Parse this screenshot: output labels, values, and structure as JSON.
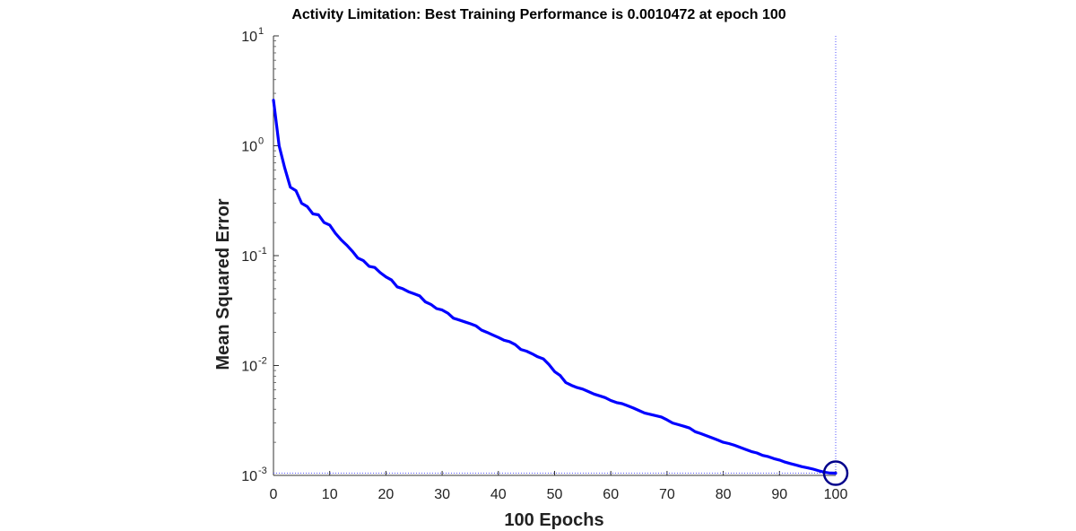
{
  "chart_data": {
    "type": "line",
    "title": "Activity Limitation: Best Training Performance is 0.0010472 at epoch 100",
    "xlabel": "100 Epochs",
    "ylabel": "Mean Squared Error",
    "xlim": [
      0,
      100
    ],
    "ylim": [
      0.001,
      10
    ],
    "yscale": "log",
    "xticks": [
      0,
      10,
      20,
      30,
      40,
      50,
      60,
      70,
      80,
      90,
      100
    ],
    "xtick_labels": [
      "0",
      "10",
      "20",
      "30",
      "40",
      "50",
      "60",
      "70",
      "80",
      "90",
      "100"
    ],
    "yticks": [
      {
        "value": 10,
        "base": "10",
        "exp": "1"
      },
      {
        "value": 1,
        "base": "10",
        "exp": "0"
      },
      {
        "value": 0.1,
        "base": "10",
        "exp": "-1"
      },
      {
        "value": 0.01,
        "base": "10",
        "exp": "-2"
      },
      {
        "value": 0.001,
        "base": "10",
        "exp": "-3"
      }
    ],
    "grid": false,
    "series": [
      {
        "color": "#0000ff",
        "x": [
          0,
          1,
          2,
          3,
          4,
          5,
          6,
          7,
          8,
          9,
          10,
          11,
          12,
          13,
          14,
          15,
          16,
          17,
          18,
          19,
          20,
          21,
          22,
          23,
          24,
          25,
          26,
          27,
          28,
          29,
          30,
          31,
          32,
          33,
          34,
          35,
          36,
          37,
          38,
          39,
          40,
          41,
          42,
          43,
          44,
          45,
          46,
          47,
          48,
          49,
          50,
          51,
          52,
          53,
          54,
          55,
          56,
          57,
          58,
          59,
          60,
          61,
          62,
          63,
          64,
          65,
          66,
          67,
          68,
          69,
          70,
          71,
          72,
          73,
          74,
          75,
          76,
          77,
          78,
          79,
          80,
          81,
          82,
          83,
          84,
          85,
          86,
          87,
          88,
          89,
          90,
          91,
          92,
          93,
          94,
          95,
          96,
          97,
          98,
          99,
          100
        ],
        "y": [
          2.6,
          1.0,
          0.63,
          0.42,
          0.39,
          0.3,
          0.28,
          0.24,
          0.235,
          0.2,
          0.19,
          0.16,
          0.14,
          0.125,
          0.11,
          0.095,
          0.09,
          0.08,
          0.078,
          0.07,
          0.064,
          0.06,
          0.052,
          0.05,
          0.047,
          0.045,
          0.043,
          0.038,
          0.036,
          0.033,
          0.032,
          0.03,
          0.027,
          0.026,
          0.025,
          0.024,
          0.023,
          0.021,
          0.02,
          0.019,
          0.018,
          0.017,
          0.0165,
          0.0155,
          0.014,
          0.0135,
          0.0128,
          0.012,
          0.0115,
          0.0102,
          0.0088,
          0.0081,
          0.007,
          0.0066,
          0.0063,
          0.0061,
          0.0058,
          0.0055,
          0.0053,
          0.0051,
          0.0048,
          0.0046,
          0.0045,
          0.0043,
          0.0041,
          0.0039,
          0.0037,
          0.0036,
          0.0035,
          0.0034,
          0.0032,
          0.003,
          0.0029,
          0.0028,
          0.0027,
          0.0025,
          0.0024,
          0.0023,
          0.0022,
          0.0021,
          0.002,
          0.00195,
          0.00188,
          0.0018,
          0.00172,
          0.00165,
          0.0016,
          0.00152,
          0.00148,
          0.00142,
          0.00138,
          0.00132,
          0.00128,
          0.00124,
          0.0012,
          0.00117,
          0.00114,
          0.0011,
          0.00107,
          0.00105,
          0.0010472
        ]
      }
    ],
    "best": {
      "epoch": 100,
      "value": 0.0010472,
      "marker_color": "#00008b",
      "line_color": "#5555ff"
    }
  }
}
